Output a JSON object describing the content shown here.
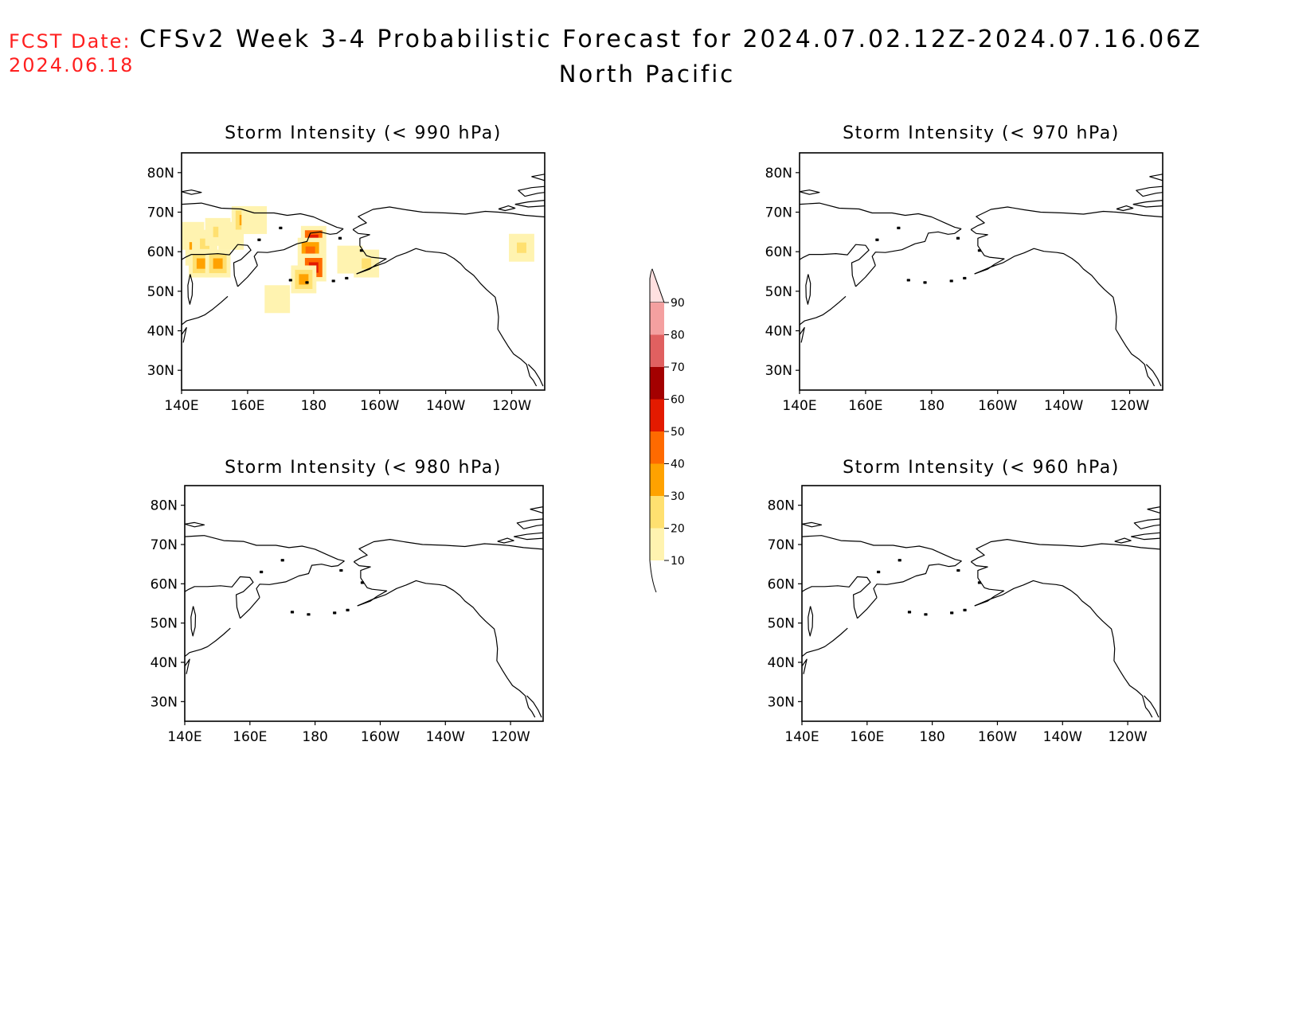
{
  "header": {
    "fcst_label": "FCST Date:",
    "fcst_date": "2024.06.18",
    "title": "CFSv2 Week 3-4 Probabilistic Forecast for 2024.07.02.12Z-2024.07.16.06Z",
    "subtitle": "North Pacific"
  },
  "panels": [
    {
      "id": "p990",
      "title": "Storm Intensity (< 990 hPa)",
      "threshold_hpa": 990,
      "has_probability": true
    },
    {
      "id": "p970",
      "title": "Storm Intensity (< 970 hPa)",
      "threshold_hpa": 970,
      "has_probability": false
    },
    {
      "id": "p980",
      "title": "Storm Intensity (< 980 hPa)",
      "threshold_hpa": 980,
      "has_probability": false
    },
    {
      "id": "p960",
      "title": "Storm Intensity (< 960 hPa)",
      "threshold_hpa": 960,
      "has_probability": false
    }
  ],
  "map": {
    "lon_ticks": [
      "140E",
      "160E",
      "180",
      "160W",
      "140W",
      "120W"
    ],
    "lat_ticks": [
      "80N",
      "70N",
      "60N",
      "50N",
      "40N",
      "30N"
    ],
    "lon_range": [
      140,
      250
    ],
    "lat_range": [
      25,
      85
    ]
  },
  "colorbar": {
    "levels": [
      "10",
      "20",
      "30",
      "40",
      "50",
      "60",
      "70",
      "80",
      "90"
    ],
    "colors": [
      "#fff3b0",
      "#ffe070",
      "#ffa200",
      "#ff6a00",
      "#e31a00",
      "#a30000",
      "#e06060",
      "#f4a0a0",
      "#ffe0e0"
    ]
  },
  "chart_data": {
    "type": "heatmap",
    "units": "probability (%)",
    "panel": "Storm Intensity (< 990 hPa)",
    "cells": [
      {
        "lon": 143,
        "lat": 64,
        "prob": 10
      },
      {
        "lon": 145,
        "lat": 60,
        "prob": 40
      },
      {
        "lon": 147,
        "lat": 62,
        "prob": 20
      },
      {
        "lon": 146,
        "lat": 57,
        "prob": 30
      },
      {
        "lon": 151,
        "lat": 57,
        "prob": 30
      },
      {
        "lon": 151,
        "lat": 65,
        "prob": 20
      },
      {
        "lon": 155,
        "lat": 64,
        "prob": 10
      },
      {
        "lon": 159,
        "lat": 68,
        "prob": 30
      },
      {
        "lon": 162,
        "lat": 68,
        "prob": 10
      },
      {
        "lon": 180,
        "lat": 63,
        "prob": 50
      },
      {
        "lon": 179,
        "lat": 60,
        "prob": 40
      },
      {
        "lon": 180,
        "lat": 56,
        "prob": 50
      },
      {
        "lon": 177,
        "lat": 53,
        "prob": 30
      },
      {
        "lon": 169,
        "lat": 48,
        "prob": 10
      },
      {
        "lon": 191,
        "lat": 58,
        "prob": 10
      },
      {
        "lon": 196,
        "lat": 57,
        "prob": 20
      },
      {
        "lon": 243,
        "lat": 61,
        "prob": 20
      }
    ]
  }
}
